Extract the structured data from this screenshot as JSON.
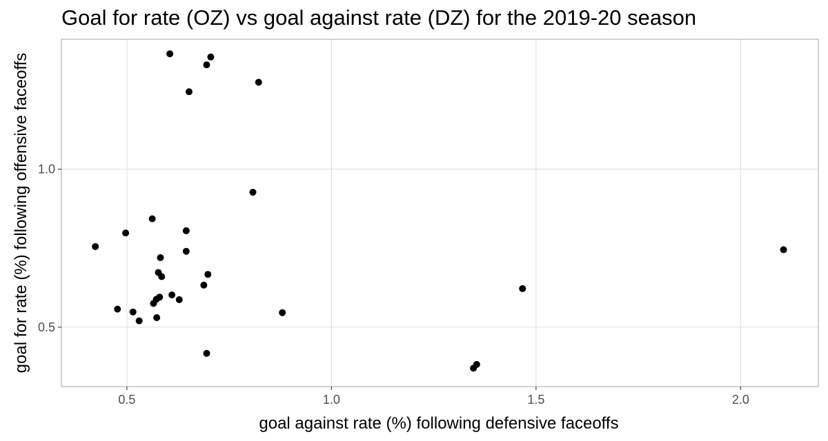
{
  "chart_data": {
    "type": "scatter",
    "title": "Goal for rate (OZ) vs goal against rate (DZ) for the 2019-20 season",
    "xlabel": "goal against rate (%) following defensive faceoffs",
    "ylabel": "goal for rate (%) following offensive faceoffs",
    "xlim": [
      0.34,
      2.19
    ],
    "ylim": [
      0.312,
      1.411
    ],
    "x_ticks": [
      0.5,
      1.0,
      1.5,
      2.0
    ],
    "x_tick_labels": [
      "0.5",
      "1.0",
      "1.5",
      "2.0"
    ],
    "y_ticks": [
      0.5,
      1.0
    ],
    "y_tick_labels": [
      "0.5",
      "1.0"
    ],
    "grid": true,
    "legend": "none",
    "point_color": "#000000",
    "grid_color": "#e0e0e0",
    "panel_border_color": "#b3b3b3",
    "points": [
      {
        "x": 0.605,
        "y": 1.365
      },
      {
        "x": 0.705,
        "y": 1.355
      },
      {
        "x": 0.695,
        "y": 1.33
      },
      {
        "x": 0.822,
        "y": 1.275
      },
      {
        "x": 0.652,
        "y": 1.245
      },
      {
        "x": 0.808,
        "y": 0.927
      },
      {
        "x": 0.562,
        "y": 0.843
      },
      {
        "x": 0.645,
        "y": 0.805
      },
      {
        "x": 0.497,
        "y": 0.798
      },
      {
        "x": 0.423,
        "y": 0.755
      },
      {
        "x": 0.645,
        "y": 0.74
      },
      {
        "x": 2.105,
        "y": 0.745
      },
      {
        "x": 0.582,
        "y": 0.72
      },
      {
        "x": 0.577,
        "y": 0.673
      },
      {
        "x": 0.698,
        "y": 0.667
      },
      {
        "x": 0.585,
        "y": 0.66
      },
      {
        "x": 0.688,
        "y": 0.633
      },
      {
        "x": 1.467,
        "y": 0.622
      },
      {
        "x": 0.61,
        "y": 0.602
      },
      {
        "x": 0.58,
        "y": 0.595
      },
      {
        "x": 0.628,
        "y": 0.587
      },
      {
        "x": 0.572,
        "y": 0.588
      },
      {
        "x": 0.565,
        "y": 0.575
      },
      {
        "x": 0.477,
        "y": 0.557
      },
      {
        "x": 0.515,
        "y": 0.548
      },
      {
        "x": 0.88,
        "y": 0.546
      },
      {
        "x": 0.573,
        "y": 0.53
      },
      {
        "x": 0.53,
        "y": 0.52
      },
      {
        "x": 0.695,
        "y": 0.417
      },
      {
        "x": 1.355,
        "y": 0.382
      },
      {
        "x": 1.347,
        "y": 0.37
      }
    ]
  }
}
